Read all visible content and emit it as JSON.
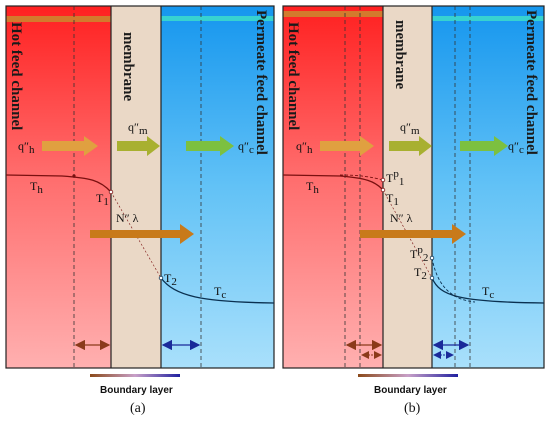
{
  "panels": [
    {
      "hot_channel_label": "Hot feed channel",
      "membrane_label": "membrane",
      "permeate_channel_label": "Permeate feed channel",
      "q_h": "q″",
      "q_h_sub": "h",
      "q_m": "q″",
      "q_m_sub": "m",
      "q_c": "q″",
      "q_c_sub": "c",
      "T_h": "T",
      "T_h_sub": "h",
      "T_1": "T",
      "T_1_sub": "1",
      "T_2": "T",
      "T_2_sub": "2",
      "T_c": "T",
      "T_c_sub": "c",
      "flux_label": "N″ λ",
      "boundary_label": "Boundary layer",
      "panel_label": "(a)"
    },
    {
      "hot_channel_label": "Hot feed channel",
      "membrane_label": "membrane",
      "permeate_channel_label": "Permeate feed channel",
      "q_h": "q″",
      "q_h_sub": "h",
      "q_m": "q″",
      "q_m_sub": "m",
      "q_c": "q″",
      "q_c_sub": "c",
      "T_h": "T",
      "T_h_sub": "h",
      "Tp_1": "T",
      "Tp_1_sup": "p",
      "Tp_1_sub": "1",
      "T_1": "T",
      "T_1_sub": "1",
      "Tp_2": "T",
      "Tp_2_sup": "p",
      "Tp_2_sub": "2",
      "T_2": "T",
      "T_2_sub": "2",
      "T_c": "T",
      "T_c_sub": "c",
      "flux_label": "N″ λ",
      "boundary_label": "Boundary layer",
      "panel_label": "(b)"
    }
  ],
  "colors": {
    "hot": "#ff2a2a",
    "membrane": "#e8d5c2",
    "permeate": "#2aa8f0",
    "heat_arrow": "#7fc03a",
    "flux_arrow": "#c87a1a",
    "boundary_arrow": "#8b3a1a"
  }
}
